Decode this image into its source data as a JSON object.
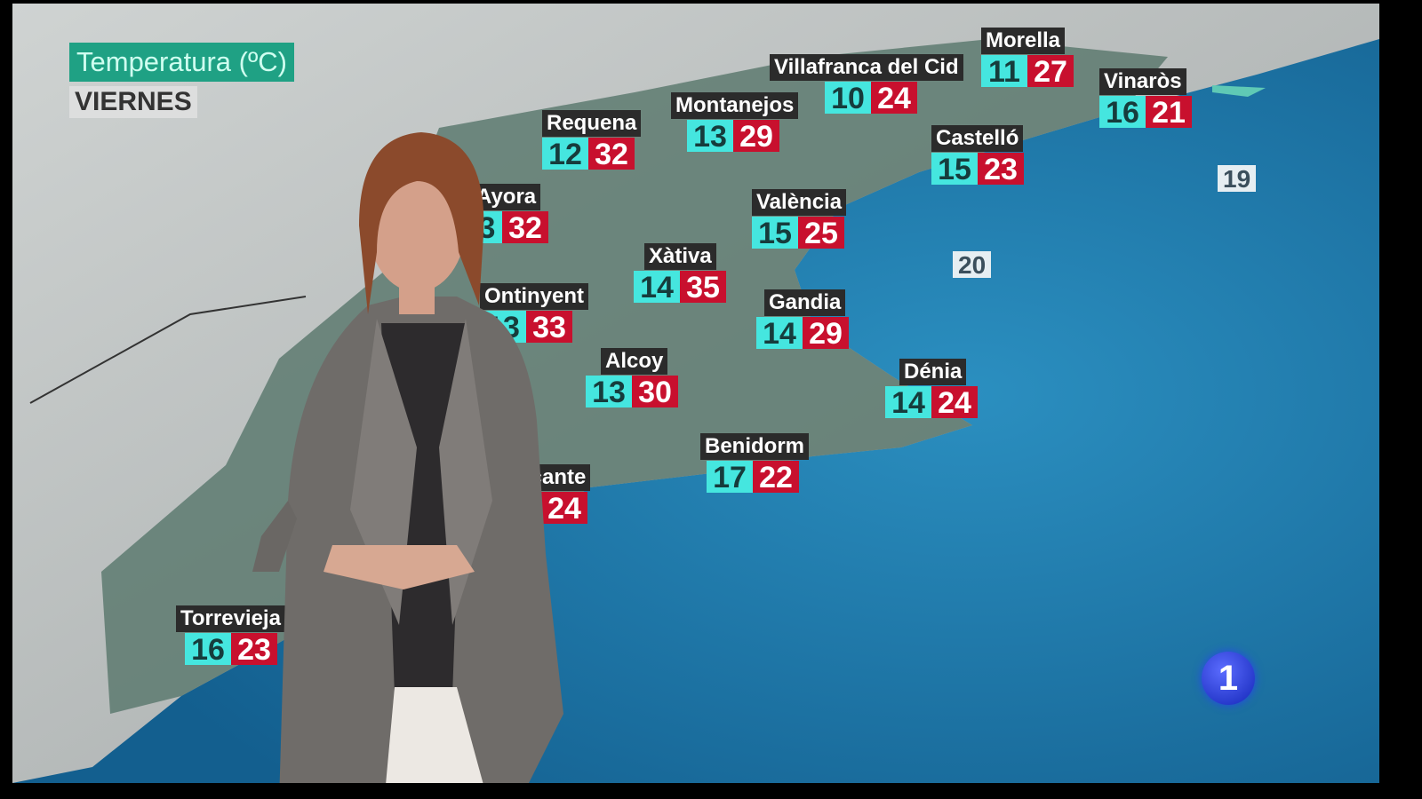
{
  "header": {
    "title": "Temperatura (ºC)",
    "day": "VIERNES"
  },
  "cities": [
    {
      "name": "Requena",
      "min": "12",
      "max": "32"
    },
    {
      "name": "Montanejos",
      "min": "13",
      "max": "29"
    },
    {
      "name": "Villafranca del Cid",
      "min": "10",
      "max": "24"
    },
    {
      "name": "Morella",
      "min": "11",
      "max": "27"
    },
    {
      "name": "Vinaròs",
      "min": "16",
      "max": "21"
    },
    {
      "name": "Castelló",
      "min": "15",
      "max": "23"
    },
    {
      "name": "Ayora",
      "min": "3",
      "max": "32"
    },
    {
      "name": "València",
      "min": "15",
      "max": "25"
    },
    {
      "name": "Xàtiva",
      "min": "14",
      "max": "35"
    },
    {
      "name": "Ontinyent",
      "min": "13",
      "max": "33"
    },
    {
      "name": "Gandia",
      "min": "14",
      "max": "29"
    },
    {
      "name": "Alcoy",
      "min": "13",
      "max": "30"
    },
    {
      "name": "Dénia",
      "min": "14",
      "max": "24"
    },
    {
      "name": "Benidorm",
      "min": "17",
      "max": "22"
    },
    {
      "name": "Alicante",
      "min": "",
      "max": "24"
    },
    {
      "name": "Torrevieja",
      "min": "16",
      "max": "23"
    }
  ],
  "sea_temps": [
    "19",
    "20"
  ],
  "channel_logo": "1",
  "colors": {
    "min_temp": "#45e6df",
    "max_temp": "#c8102e",
    "sea": "#1d7fae",
    "title_bg": "#1fa184"
  }
}
